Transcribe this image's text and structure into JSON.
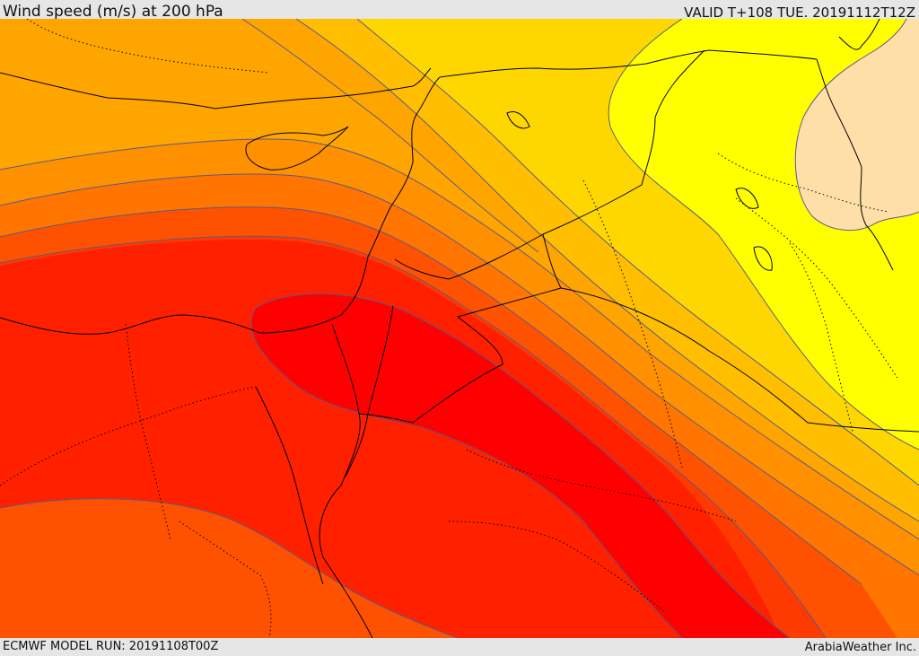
{
  "header": {
    "title": "Wind speed (m/s) at 200 hPa",
    "valid": "VALID T+108 TUE. 20191112T12Z"
  },
  "footer": {
    "model_run": "ECMWF MODEL RUN: 20191108T00Z",
    "credit": "ArabiaWeather Inc."
  },
  "colors": {
    "band_lightest": "#ffdfa8",
    "band_yellow": "#ffff00",
    "band_gold": "#ffd700",
    "band_amber": "#ffbf00",
    "band_orange_light": "#ffa500",
    "band_orange": "#ff9000",
    "band_orange_dark": "#ff7500",
    "band_red_orange": "#ff5200",
    "band_red_light": "#ff3a00",
    "band_red": "#ff2000",
    "band_max": "#ff0000",
    "contour": "#5a5a8a",
    "border": "#000000"
  }
}
